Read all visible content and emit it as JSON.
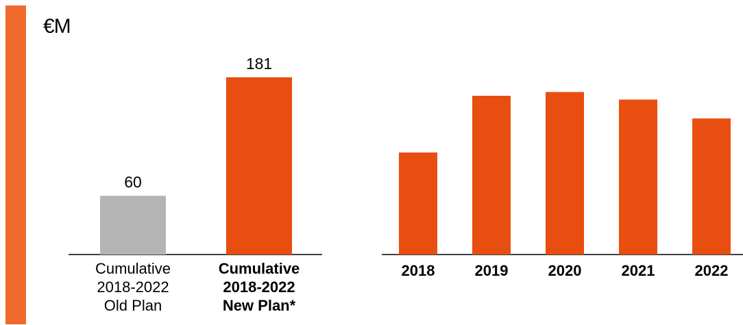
{
  "unit_label": "€M",
  "colors": {
    "accent": "#ee6b2d",
    "bar": "#e84e10",
    "old_plan_bar": "#b4b4b4",
    "axis": "#000000"
  },
  "chart_data": [
    {
      "type": "bar",
      "ylabel": "€M",
      "categories": [
        {
          "lines": [
            "Cumulative",
            "2018-2022",
            "Old Plan"
          ],
          "bold": false
        },
        {
          "lines": [
            "Cumulative",
            "2018-2022",
            "New Plan*"
          ],
          "bold": true
        }
      ],
      "values": [
        60,
        181
      ],
      "data_labels": [
        "60",
        "181"
      ],
      "colors": [
        "#b4b4b4",
        "#e84e10"
      ]
    },
    {
      "type": "bar",
      "categories": [
        "2018",
        "2019",
        "2020",
        "2021",
        "2022"
      ],
      "values": [
        27,
        42,
        43,
        41,
        36
      ],
      "note": "approximate values, no data labels shown"
    }
  ]
}
